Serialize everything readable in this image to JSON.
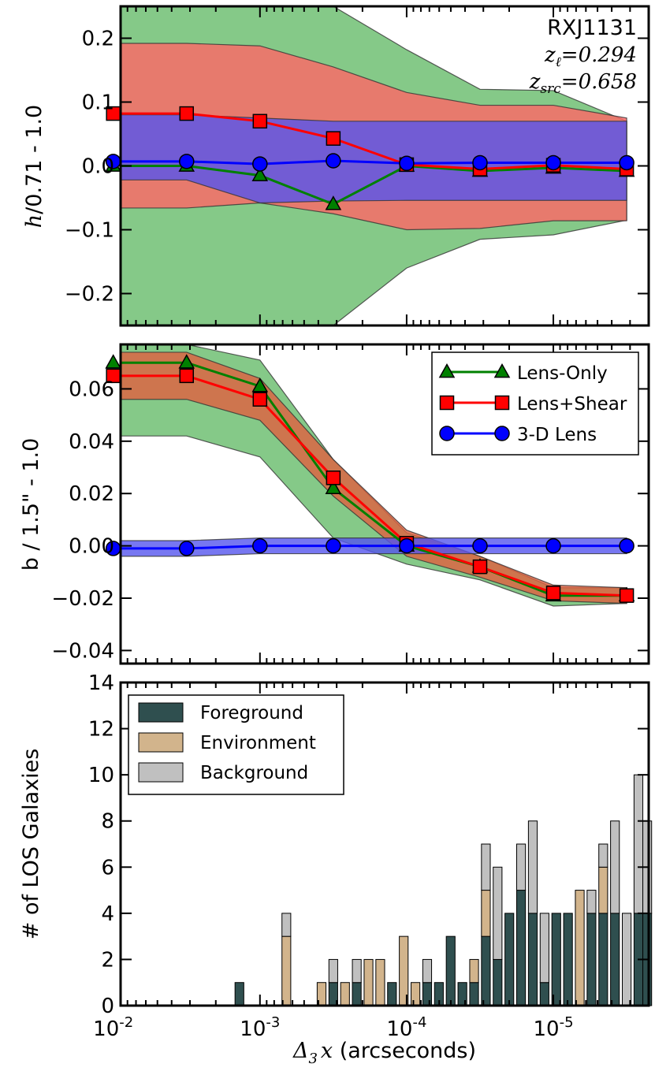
{
  "chart_data": [
    {
      "type": "line",
      "panel": "h",
      "ylabel": "h/0.71 - 1.0",
      "ylabel_math": "h",
      "ylabel_rest": "/0.71 - 1.0",
      "ylim": [
        -0.25,
        0.25
      ],
      "yticks": [
        -0.2,
        -0.1,
        0.0,
        0.1,
        0.2
      ],
      "ytick_labels": [
        "−0.2",
        "−0.1",
        "0.0",
        "0.1",
        "0.2"
      ],
      "x": [
        0.01,
        0.003162,
        0.001,
        0.0003162,
        0.0001,
        3.162e-05,
        1e-05,
        3.162e-06
      ],
      "annotation": {
        "title": "RXJ1131",
        "line1_sym": "z",
        "line1_sub": "ℓ",
        "line1_val": "=0.294",
        "line2_sym": "z",
        "line2_sub": "src",
        "line2_val": "=0.658"
      },
      "series": [
        {
          "name": "Lens-Only",
          "color": "#008000",
          "fill": "#66bb6a",
          "marker": "triangle",
          "values": [
            0.0,
            0.0,
            -0.015,
            -0.06,
            0.0,
            -0.008,
            -0.003,
            -0.008
          ],
          "upper": [
            0.25,
            0.25,
            0.25,
            0.25,
            0.182,
            0.12,
            0.118,
            0.07
          ],
          "lower": [
            -0.25,
            -0.25,
            -0.25,
            -0.25,
            -0.16,
            -0.115,
            -0.108,
            -0.085
          ]
        },
        {
          "name": "Lens+Shear",
          "color": "#ff0000",
          "fill": "#ff6666",
          "marker": "square",
          "values": [
            0.082,
            0.082,
            0.07,
            0.043,
            0.002,
            -0.005,
            0.001,
            -0.005
          ],
          "upper": [
            0.192,
            0.192,
            0.188,
            0.155,
            0.115,
            0.095,
            0.095,
            0.075
          ],
          "lower": [
            -0.066,
            -0.066,
            -0.058,
            -0.075,
            -0.1,
            -0.098,
            -0.086,
            -0.086
          ]
        },
        {
          "name": "3-D Lens",
          "color": "#0000ff",
          "fill": "#5555ee",
          "marker": "circle",
          "values": [
            0.007,
            0.007,
            0.003,
            0.008,
            0.004,
            0.005,
            0.005,
            0.005
          ],
          "upper": [
            0.08,
            0.08,
            0.075,
            0.07,
            0.07,
            0.07,
            0.07,
            0.07
          ],
          "lower": [
            -0.022,
            -0.022,
            -0.058,
            -0.055,
            -0.054,
            -0.054,
            -0.054,
            -0.054
          ]
        }
      ]
    },
    {
      "type": "line",
      "panel": "b",
      "ylabel": "b / 1.5\" - 1.0",
      "ylim": [
        -0.045,
        0.077
      ],
      "yticks": [
        -0.04,
        -0.02,
        0.0,
        0.02,
        0.04,
        0.06
      ],
      "ytick_labels": [
        "−0.04",
        "−0.02",
        "0.00",
        "0.02",
        "0.04",
        "0.06"
      ],
      "x": [
        0.01,
        0.003162,
        0.001,
        0.0003162,
        0.0001,
        3.162e-05,
        1e-05,
        3.162e-06
      ],
      "legend": {
        "position": "top-right",
        "labels": [
          "Lens-Only",
          "Lens+Shear",
          "3-D Lens"
        ]
      },
      "series": [
        {
          "name": "Lens-Only",
          "color": "#008000",
          "fill": "#66bb6a",
          "marker": "triangle",
          "values": [
            0.07,
            0.07,
            0.061,
            0.022,
            0.0,
            -0.008,
            -0.019,
            -0.019
          ],
          "upper": [
            0.077,
            0.077,
            0.071,
            0.033,
            0.005,
            -0.004,
            -0.016,
            -0.016
          ],
          "lower": [
            0.042,
            0.042,
            0.034,
            0.003,
            -0.007,
            -0.013,
            -0.023,
            -0.022
          ]
        },
        {
          "name": "Lens+Shear",
          "color": "#ff0000",
          "fill": "#e06040",
          "marker": "square",
          "values": [
            0.065,
            0.065,
            0.056,
            0.026,
            0.001,
            -0.008,
            -0.018,
            -0.019
          ],
          "upper": [
            0.074,
            0.074,
            0.064,
            0.033,
            0.006,
            -0.004,
            -0.015,
            -0.016
          ],
          "lower": [
            0.056,
            0.056,
            0.048,
            0.019,
            -0.004,
            -0.012,
            -0.021,
            -0.022
          ]
        },
        {
          "name": "3-D Lens",
          "color": "#0000ff",
          "fill": "#5555ee",
          "marker": "circle",
          "values": [
            -0.001,
            -0.001,
            0.0,
            0.0,
            0.0,
            0.0,
            0.0,
            0.0
          ],
          "upper": [
            0.002,
            0.002,
            0.003,
            0.003,
            0.003,
            0.003,
            0.003,
            0.003
          ],
          "lower": [
            -0.004,
            -0.004,
            -0.003,
            -0.003,
            -0.003,
            -0.003,
            -0.003,
            -0.003
          ]
        }
      ]
    },
    {
      "type": "bar",
      "panel": "histogram",
      "ylabel": "# of LOS Galaxies",
      "xlabel_math": "Δ",
      "xlabel_sub": "3",
      "xlabel_var": "x",
      "xlabel_rest": " (arcseconds)",
      "ylim": [
        0,
        14
      ],
      "yticks": [
        0,
        2,
        4,
        6,
        8,
        10,
        12,
        14
      ],
      "ytick_labels": [
        "0",
        "2",
        "4",
        "6",
        "8",
        "10",
        "12",
        "14"
      ],
      "xlim_log10": [
        -2.05,
        -5.65
      ],
      "xtick_log10": [
        -2,
        -3,
        -4,
        -5
      ],
      "xtick_base": "10",
      "xtick_exponents": [
        "-2",
        "-3",
        "-4",
        "-5"
      ],
      "legend": {
        "position": "top-left",
        "labels": [
          "Foreground",
          "Environment",
          "Background"
        ]
      },
      "colors": {
        "Foreground": "#2f4f4f",
        "Environment": "#d2b48c",
        "Background": "#c0c0c0"
      },
      "bar_width_log10": 0.06,
      "bins": [
        {
          "log10x": -2.86,
          "foreground": 1,
          "environment": 0,
          "background": 0
        },
        {
          "log10x": -3.18,
          "foreground": 0,
          "environment": 3,
          "background": 1
        },
        {
          "log10x": -3.42,
          "foreground": 0,
          "environment": 1,
          "background": 0
        },
        {
          "log10x": -3.5,
          "foreground": 1,
          "environment": 0,
          "background": 1
        },
        {
          "log10x": -3.58,
          "foreground": 0,
          "environment": 1,
          "background": 0
        },
        {
          "log10x": -3.66,
          "foreground": 1,
          "environment": 0,
          "background": 1
        },
        {
          "log10x": -3.74,
          "foreground": 0,
          "environment": 2,
          "background": 0
        },
        {
          "log10x": -3.82,
          "foreground": 0,
          "environment": 2,
          "background": 0
        },
        {
          "log10x": -3.9,
          "foreground": 1,
          "environment": 0,
          "background": 0
        },
        {
          "log10x": -3.98,
          "foreground": 0,
          "environment": 3,
          "background": 0
        },
        {
          "log10x": -4.06,
          "foreground": 0,
          "environment": 1,
          "background": 0
        },
        {
          "log10x": -4.14,
          "foreground": 1,
          "environment": 0,
          "background": 1
        },
        {
          "log10x": -4.22,
          "foreground": 1,
          "environment": 0,
          "background": 0
        },
        {
          "log10x": -4.3,
          "foreground": 3,
          "environment": 0,
          "background": 0
        },
        {
          "log10x": -4.38,
          "foreground": 1,
          "environment": 0,
          "background": 0
        },
        {
          "log10x": -4.46,
          "foreground": 1,
          "environment": 1,
          "background": 0
        },
        {
          "log10x": -4.54,
          "foreground": 3,
          "environment": 2,
          "background": 2
        },
        {
          "log10x": -4.62,
          "foreground": 2,
          "environment": 0,
          "background": 4
        },
        {
          "log10x": -4.7,
          "foreground": 4,
          "environment": 0,
          "background": 0
        },
        {
          "log10x": -4.78,
          "foreground": 5,
          "environment": 0,
          "background": 2
        },
        {
          "log10x": -4.86,
          "foreground": 4,
          "environment": 0,
          "background": 4
        },
        {
          "log10x": -4.94,
          "foreground": 1,
          "environment": 0,
          "background": 3
        },
        {
          "log10x": -5.02,
          "foreground": 4,
          "environment": 0,
          "background": 0
        },
        {
          "log10x": -5.1,
          "foreground": 4,
          "environment": 0,
          "background": 0
        },
        {
          "log10x": -5.18,
          "foreground": 0,
          "environment": 5,
          "background": 0
        },
        {
          "log10x": -5.26,
          "foreground": 4,
          "environment": 0,
          "background": 1
        },
        {
          "log10x": -5.34,
          "foreground": 4,
          "environment": 2,
          "background": 1
        },
        {
          "log10x": -5.42,
          "foreground": 4,
          "environment": 0,
          "background": 4
        },
        {
          "log10x": -5.5,
          "foreground": 0,
          "environment": 0,
          "background": 4
        },
        {
          "log10x": -5.58,
          "foreground": 4,
          "environment": 0,
          "background": 6
        },
        {
          "log10x": -5.64,
          "foreground": 4,
          "environment": 0,
          "background": 4
        }
      ]
    }
  ]
}
